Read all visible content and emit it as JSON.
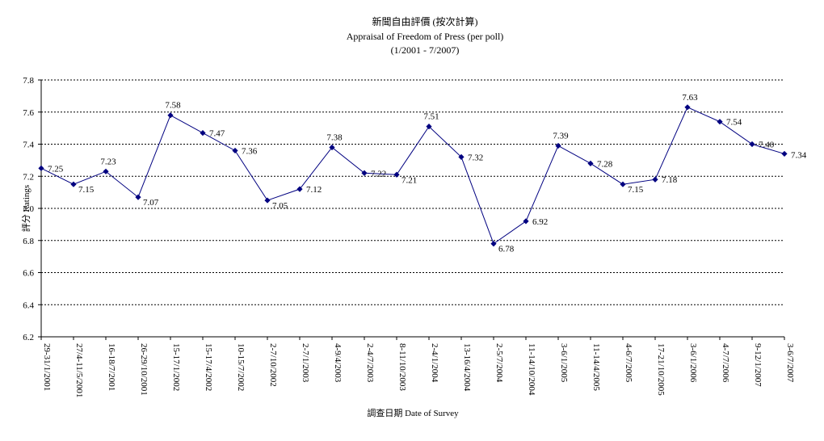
{
  "chart_data": {
    "type": "line",
    "title": "新聞自由評價 (按次計算)",
    "subtitle": "Appraisal of Freedom of Press (per poll)",
    "subtitle2": "(1/2001 - 7/2007)",
    "xlabel": "調查日期 Date of Survey",
    "ylabel": "評分 Ratings",
    "ylim": [
      6.2,
      7.8
    ],
    "yticks": [
      "7.8",
      "7.6",
      "7.4",
      "7.2",
      "7.0",
      "6.8",
      "6.6",
      "6.4",
      "6.2"
    ],
    "grid": true,
    "series_color": "#000080",
    "categories": [
      "29-31/1/2001",
      "27/4-11/5/2001",
      "16-18/7/2001",
      "26-29/10/2001",
      "15-17/1/2002",
      "15-17/4/2002",
      "10-15/7/2002",
      "2-7/10/2002",
      "2-7/1/2003",
      "4-9/4/2003",
      "2-4/7/2003",
      "8-11/10/2003",
      "2-4/1/2004",
      "13-16/4/2004",
      "2-5/7/2004",
      "11-14/10/2004",
      "3-6/1/2005",
      "11-14/4/2005",
      "4-6/7/2005",
      "17-21/10/2005",
      "3-6/1/2006",
      "4-7/7/2006",
      "9-12/1/2007",
      "3-6/7/2007"
    ],
    "values": [
      7.25,
      7.15,
      7.23,
      7.07,
      7.58,
      7.47,
      7.36,
      7.05,
      7.12,
      7.38,
      7.22,
      7.21,
      7.51,
      7.32,
      6.78,
      6.92,
      7.39,
      7.28,
      7.15,
      7.18,
      7.63,
      7.54,
      7.4,
      7.34
    ],
    "data_labels": [
      "7.25",
      "7.15",
      "7.23",
      "7.07",
      "7.58",
      "7.47",
      "7.36",
      "7.05",
      "7.12",
      "7.38",
      "7.22",
      "7.21",
      "7.51",
      "7.32",
      "6.78",
      "6.92",
      "7.39",
      "7.28",
      "7.15",
      "7.18",
      "7.63",
      "7.54",
      "7.40",
      "7.34"
    ]
  }
}
